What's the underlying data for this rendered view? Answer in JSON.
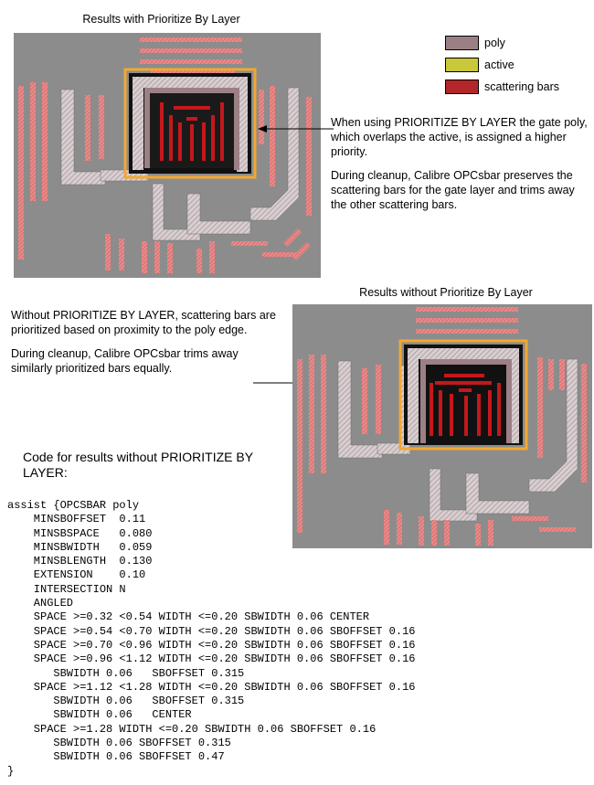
{
  "top_caption": "Results with Prioritize By Layer",
  "bottom_caption": "Results without Prioritize By Layer",
  "legend": [
    {
      "label": "poly",
      "fill": "#9c7f84",
      "icon": "poly-swatch"
    },
    {
      "label": "active",
      "fill": "#c8c83a",
      "icon": "active-swatch"
    },
    {
      "label": "scattering bars",
      "fill": "#b3262a",
      "icon": "scattering-bars-swatch"
    }
  ],
  "note_with": {
    "p1": "When using PRIORITIZE BY LAYER the gate poly, which overlaps the active, is assigned a higher priority.",
    "p2": "During cleanup, Calibre OPCsbar preserves the scattering bars for the gate layer and trims away the other scattering bars."
  },
  "note_without": {
    "p1": "Without PRIORITIZE BY LAYER, scattering bars are prioritized based on proximity to the poly edge.",
    "p2": "During cleanup, Calibre OPCsbar trims away similarly prioritized bars equally."
  },
  "code_heading": "Code for results without PRIORITIZE BY LAYER:",
  "code": "assist {OPCSBAR poly\n    MINSBOFFSET  0.11\n    MINSBSPACE   0.080\n    MINSBWIDTH   0.059\n    MINSBLENGTH  0.130\n    EXTENSION    0.10\n    INTERSECTION N\n    ANGLED\n    SPACE >=0.32 <0.54 WIDTH <=0.20 SBWIDTH 0.06 CENTER\n    SPACE >=0.54 <0.70 WIDTH <=0.20 SBWIDTH 0.06 SBOFFSET 0.16\n    SPACE >=0.70 <0.96 WIDTH <=0.20 SBWIDTH 0.06 SBOFFSET 0.16\n    SPACE >=0.96 <1.12 WIDTH <=0.20 SBWIDTH 0.06 SBOFFSET 0.16\n       SBWIDTH 0.06   SBOFFSET 0.315\n    SPACE >=1.12 <1.28 WIDTH <=0.20 SBWIDTH 0.06 SBOFFSET 0.16\n       SBWIDTH 0.06   SBOFFSET 0.315\n       SBWIDTH 0.06   CENTER\n    SPACE >=1.28 WIDTH <=0.20 SBWIDTH 0.06 SBOFFSET 0.16\n       SBWIDTH 0.06 SBOFFSET 0.315\n       SBWIDTH 0.06 SBOFFSET 0.47\n}",
  "colors": {
    "background_layout": "#8a8a8a",
    "poly": "#c9bfc1",
    "active_outline": "#f2a830",
    "scattering_bar": "#e07a7a",
    "gate_core": "#0a0a0a",
    "gate_bar": "#c4181c"
  }
}
